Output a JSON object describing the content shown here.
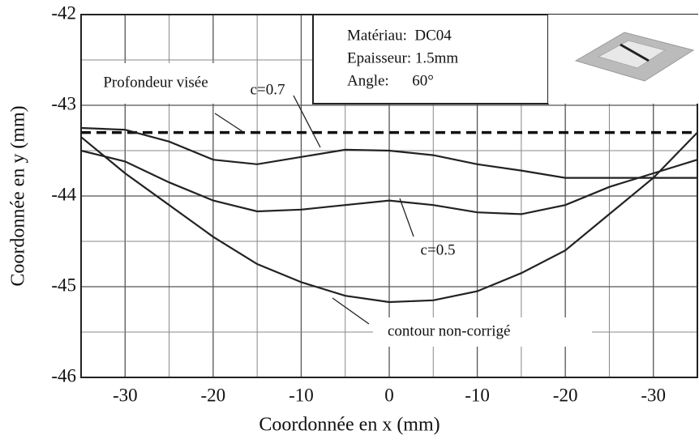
{
  "chart_data": {
    "type": "line",
    "x_label": "Coordonnée en x (mm)",
    "y_label": "Coordonnée en y (mm)",
    "x": [
      -35,
      -30,
      -25,
      -20,
      -15,
      -10,
      -5,
      0,
      5,
      10,
      15,
      20,
      25,
      30,
      35
    ],
    "series": [
      {
        "name": "Profondeur visée",
        "color": "#111111",
        "dashed": true,
        "values": [
          -43.3,
          -43.3,
          -43.3,
          -43.3,
          -43.3,
          -43.3,
          -43.3,
          -43.3,
          -43.3,
          -43.3,
          -43.3,
          -43.3,
          -43.3,
          -43.3,
          -43.3
        ]
      },
      {
        "name": "c=0.7",
        "color": "#222222",
        "values": [
          -43.25,
          -43.27,
          -43.4,
          -43.6,
          -43.65,
          -43.57,
          -43.49,
          -43.5,
          -43.55,
          -43.65,
          -43.72,
          -43.8,
          -43.8,
          -43.8,
          -43.8
        ]
      },
      {
        "name": "c=0.5",
        "color": "#222222",
        "values": [
          -43.5,
          -43.62,
          -43.85,
          -44.05,
          -44.17,
          -44.15,
          -44.1,
          -44.05,
          -44.1,
          -44.18,
          -44.2,
          -44.1,
          -43.9,
          -43.75,
          -43.6
        ]
      },
      {
        "name": "contour non-corrigé",
        "color": "#222222",
        "values": [
          -43.35,
          -43.75,
          -44.1,
          -44.45,
          -44.75,
          -44.95,
          -45.1,
          -45.17,
          -45.15,
          -45.05,
          -44.85,
          -44.6,
          -44.2,
          -43.8,
          -43.3
        ]
      }
    ],
    "xlim": [
      -35,
      35
    ],
    "xticks": [
      {
        "value": -30,
        "label": "-30"
      },
      {
        "value": -20,
        "label": "-20"
      },
      {
        "value": -10,
        "label": "-10"
      },
      0,
      {
        "value": 10,
        "label": "-10"
      },
      {
        "value": 20,
        "label": "-20"
      },
      {
        "value": 30,
        "label": "-30"
      }
    ],
    "ylim": [
      -46,
      -42
    ],
    "yticks": [
      -46,
      -45,
      -44,
      -43,
      -42
    ],
    "grid": true,
    "minor_grid": true,
    "info_box": [
      "Matériau:  DC04",
      "Epaisseur: 1.5mm",
      "Angle:      60°"
    ]
  }
}
